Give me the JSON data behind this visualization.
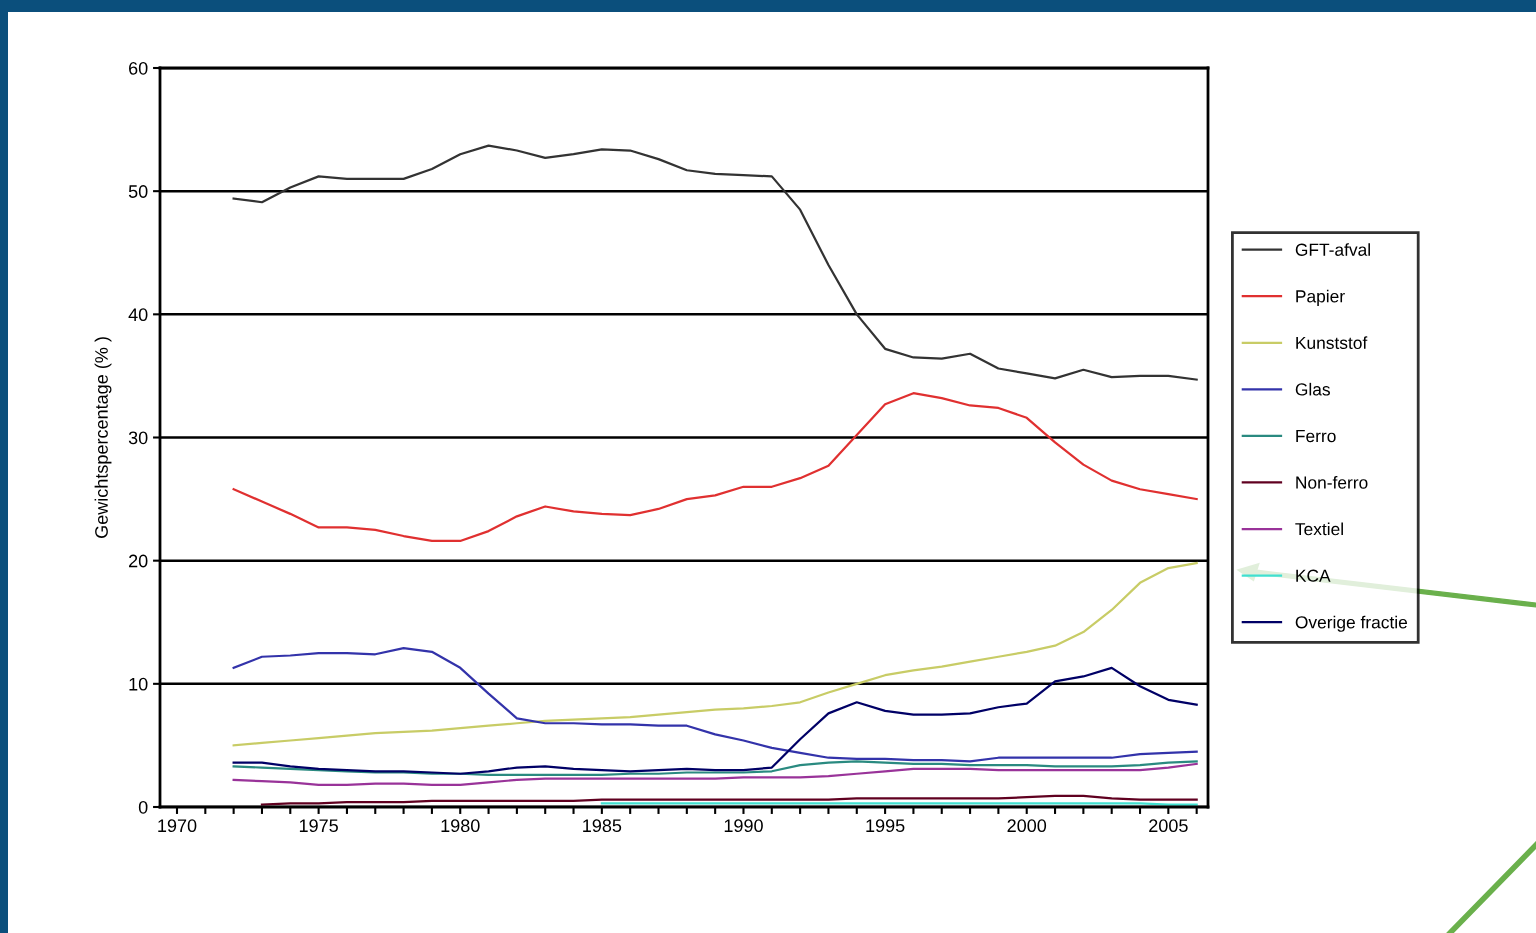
{
  "chart_data": {
    "type": "line",
    "ylabel": "Gewichtspercentage (% )",
    "x": [
      1972,
      1973,
      1974,
      1975,
      1976,
      1977,
      1978,
      1979,
      1980,
      1981,
      1982,
      1983,
      1984,
      1985,
      1986,
      1987,
      1988,
      1989,
      1990,
      1991,
      1992,
      1993,
      1994,
      1995,
      1996,
      1997,
      1998,
      1999,
      2000,
      2001,
      2002,
      2003,
      2004,
      2005,
      2006
    ],
    "xlim": [
      1969.4,
      2006.4
    ],
    "xticks": [
      1970,
      {
        "value": 1971,
        "label": null
      },
      {
        "value": 1972,
        "label": null
      },
      {
        "value": 1973,
        "label": null
      },
      {
        "value": 1974,
        "label": null
      },
      1975,
      {
        "value": 1976,
        "label": null
      },
      {
        "value": 1977,
        "label": null
      },
      {
        "value": 1978,
        "label": null
      },
      {
        "value": 1979,
        "label": null
      },
      1980,
      {
        "value": 1981,
        "label": null
      },
      {
        "value": 1982,
        "label": null
      },
      {
        "value": 1983,
        "label": null
      },
      {
        "value": 1984,
        "label": null
      },
      1985,
      {
        "value": 1986,
        "label": null
      },
      {
        "value": 1987,
        "label": null
      },
      {
        "value": 1988,
        "label": null
      },
      {
        "value": 1989,
        "label": null
      },
      1990,
      {
        "value": 1991,
        "label": null
      },
      {
        "value": 1992,
        "label": null
      },
      {
        "value": 1993,
        "label": null
      },
      {
        "value": 1994,
        "label": null
      },
      1995,
      {
        "value": 1996,
        "label": null
      },
      {
        "value": 1997,
        "label": null
      },
      {
        "value": 1998,
        "label": null
      },
      {
        "value": 1999,
        "label": null
      },
      2000,
      {
        "value": 2001,
        "label": null
      },
      {
        "value": 2002,
        "label": null
      },
      {
        "value": 2003,
        "label": null
      },
      {
        "value": 2004,
        "label": null
      },
      2005,
      {
        "value": 2006,
        "label": null
      }
    ],
    "ylim": [
      0,
      60
    ],
    "yticks": [
      0,
      10,
      20,
      30,
      40,
      50,
      60
    ],
    "grid": "y",
    "legend": "right",
    "marker": "none",
    "line_style": "solid",
    "series": [
      {
        "name": "GFT-afval",
        "color": "#333333",
        "values": [
          49.4,
          49.1,
          50.3,
          51.2,
          51.0,
          51.0,
          51.0,
          51.8,
          53.0,
          53.7,
          53.3,
          52.7,
          53.0,
          53.4,
          53.3,
          52.6,
          51.7,
          51.4,
          51.3,
          51.2,
          48.5,
          44.0,
          40.0,
          37.2,
          36.5,
          36.4,
          36.8,
          35.6,
          35.2,
          34.8,
          35.5,
          34.9,
          35.0,
          35.0,
          34.7
        ]
      },
      {
        "name": "Papier",
        "color": "#e03030",
        "values": [
          25.8,
          24.8,
          23.8,
          22.7,
          22.7,
          22.5,
          22.0,
          21.6,
          21.6,
          22.4,
          23.6,
          24.4,
          24.0,
          23.8,
          23.7,
          24.2,
          25.0,
          25.3,
          26.0,
          26.0,
          26.7,
          27.7,
          30.2,
          32.7,
          33.6,
          33.2,
          32.6,
          32.4,
          31.6,
          29.6,
          27.8,
          26.5,
          25.8,
          25.4,
          25.0
        ]
      },
      {
        "name": "Kunststof",
        "color": "#c8cc66",
        "values": [
          5.0,
          5.2,
          5.4,
          5.6,
          5.8,
          6.0,
          6.1,
          6.2,
          6.4,
          6.6,
          6.8,
          7.0,
          7.1,
          7.2,
          7.3,
          7.5,
          7.7,
          7.9,
          8.0,
          8.2,
          8.5,
          9.3,
          10.0,
          10.7,
          11.1,
          11.4,
          11.8,
          12.2,
          12.6,
          13.1,
          14.2,
          16.0,
          18.2,
          19.4,
          19.8
        ]
      },
      {
        "name": "Glas",
        "color": "#3333aa",
        "values": [
          11.3,
          12.2,
          12.3,
          12.5,
          12.5,
          12.4,
          12.9,
          12.6,
          11.3,
          9.2,
          7.2,
          6.8,
          6.8,
          6.7,
          6.7,
          6.6,
          6.6,
          5.9,
          5.4,
          4.8,
          4.4,
          4.0,
          3.9,
          3.9,
          3.8,
          3.8,
          3.7,
          4.0,
          4.0,
          4.0,
          4.0,
          4.0,
          4.3,
          4.4,
          4.5
        ]
      },
      {
        "name": "Ferro",
        "color": "#2a8a80",
        "values": [
          3.3,
          3.2,
          3.1,
          3.0,
          2.9,
          2.8,
          2.8,
          2.7,
          2.7,
          2.6,
          2.6,
          2.6,
          2.6,
          2.6,
          2.7,
          2.7,
          2.8,
          2.8,
          2.8,
          2.9,
          3.4,
          3.6,
          3.7,
          3.6,
          3.5,
          3.5,
          3.4,
          3.4,
          3.4,
          3.3,
          3.3,
          3.3,
          3.4,
          3.6,
          3.7
        ]
      },
      {
        "name": "Non-ferro",
        "color": "#600020",
        "values": [
          null,
          0.2,
          0.3,
          0.3,
          0.4,
          0.4,
          0.4,
          0.5,
          0.5,
          0.5,
          0.5,
          0.5,
          0.5,
          0.6,
          0.6,
          0.6,
          0.6,
          0.6,
          0.6,
          0.6,
          0.6,
          0.6,
          0.7,
          0.7,
          0.7,
          0.7,
          0.7,
          0.7,
          0.8,
          0.9,
          0.9,
          0.7,
          0.6,
          0.6,
          0.6
        ]
      },
      {
        "name": "Textiel",
        "color": "#993399",
        "values": [
          2.2,
          2.1,
          2.0,
          1.8,
          1.8,
          1.9,
          1.9,
          1.8,
          1.8,
          2.0,
          2.2,
          2.3,
          2.3,
          2.3,
          2.3,
          2.3,
          2.3,
          2.3,
          2.4,
          2.4,
          2.4,
          2.5,
          2.7,
          2.9,
          3.1,
          3.1,
          3.1,
          3.0,
          3.0,
          3.0,
          3.0,
          3.0,
          3.0,
          3.2,
          3.5
        ]
      },
      {
        "name": "KCA",
        "color": "#40e0d0",
        "values": [
          null,
          null,
          null,
          null,
          null,
          null,
          null,
          null,
          null,
          null,
          null,
          null,
          null,
          0.3,
          0.3,
          0.3,
          0.3,
          0.3,
          0.3,
          0.3,
          0.3,
          0.3,
          0.3,
          0.3,
          0.3,
          0.3,
          0.3,
          0.3,
          0.3,
          0.3,
          0.3,
          0.3,
          0.3,
          0.2,
          0.2
        ]
      },
      {
        "name": "Overige fractie",
        "color": "#000066",
        "values": [
          3.6,
          3.6,
          3.3,
          3.1,
          3.0,
          2.9,
          2.9,
          2.8,
          2.7,
          2.9,
          3.2,
          3.3,
          3.1,
          3.0,
          2.9,
          3.0,
          3.1,
          3.0,
          3.0,
          3.2,
          5.5,
          7.6,
          8.5,
          7.8,
          7.5,
          7.5,
          7.6,
          8.1,
          8.4,
          10.2,
          10.6,
          11.3,
          9.8,
          8.7,
          8.3
        ]
      }
    ]
  }
}
